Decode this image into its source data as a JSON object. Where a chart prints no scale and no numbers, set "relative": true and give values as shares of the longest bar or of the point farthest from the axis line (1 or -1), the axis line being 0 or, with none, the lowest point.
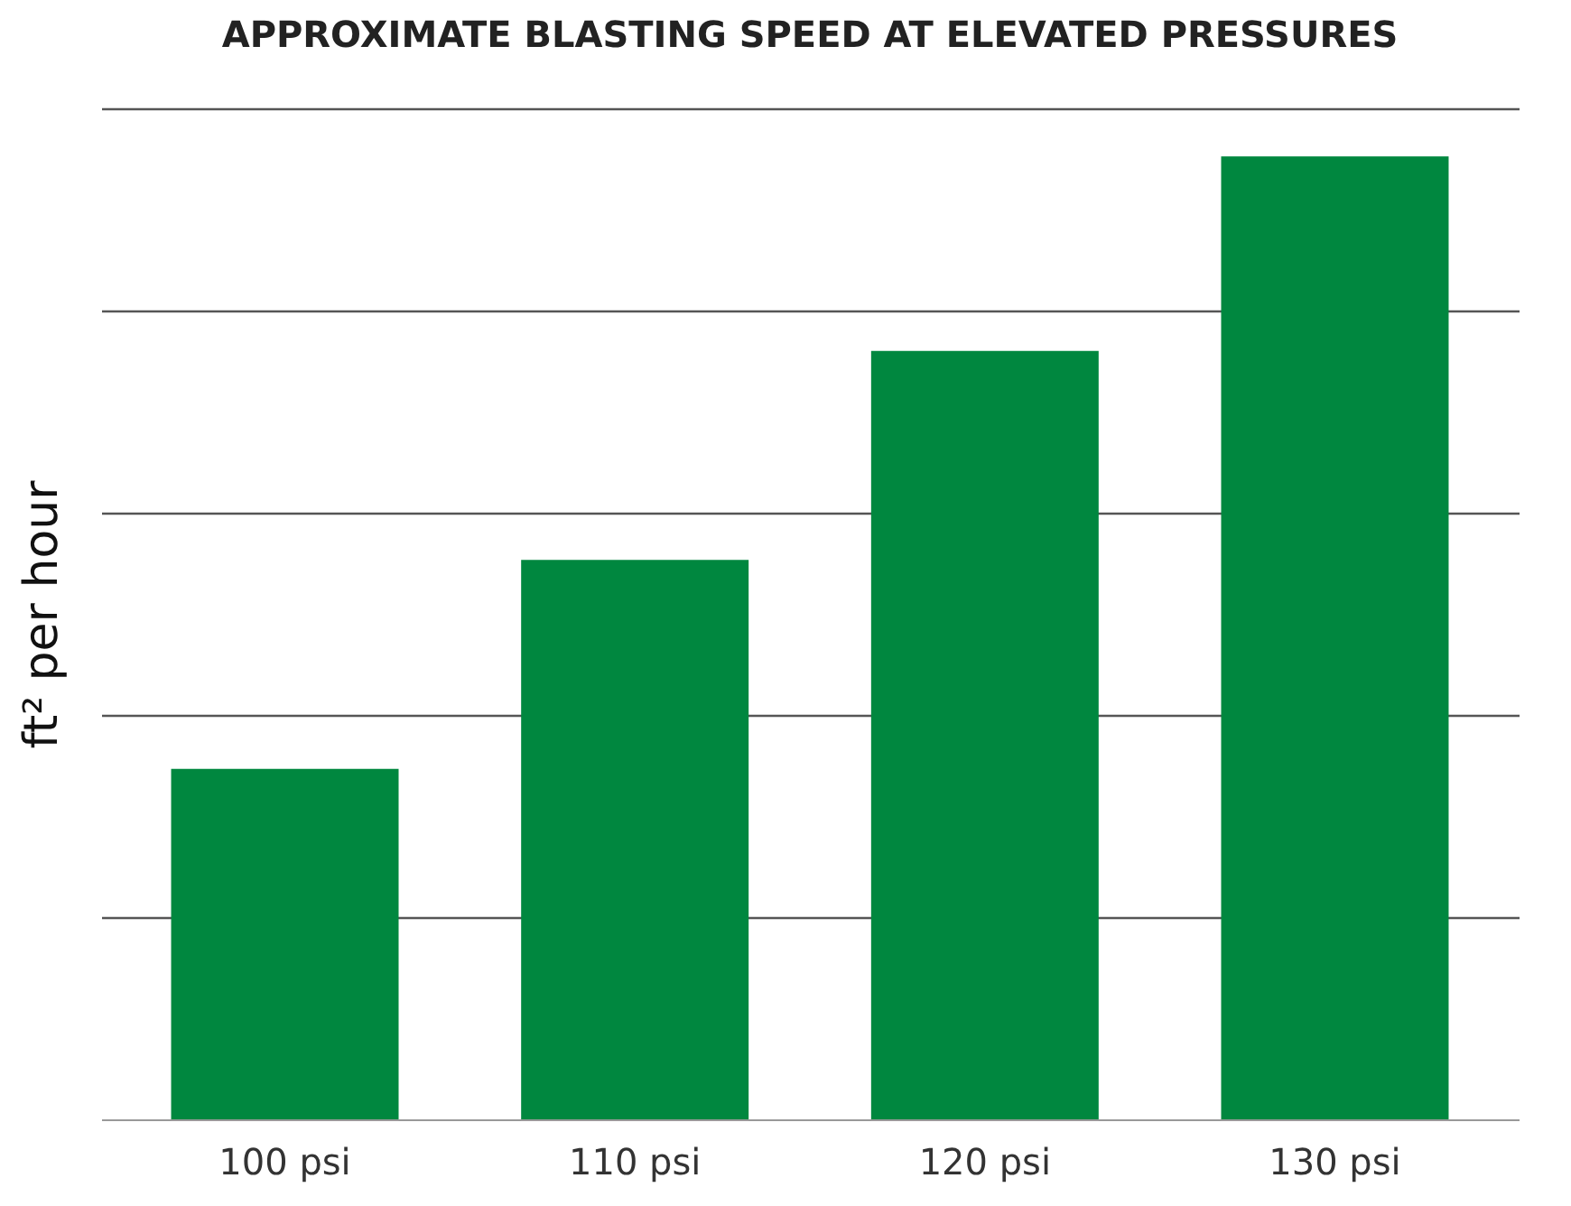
{
  "chart_data": {
    "type": "bar",
    "title": "APPROXIMATE BLASTING SPEED AT ELEVATED PRESSURES",
    "ylabel": "ft² per hour",
    "categories": [
      "100 psi",
      "110 psi",
      "120 psi",
      "130 psi"
    ],
    "values": [
      0.364,
      0.581,
      0.798,
      1
    ],
    "color": "#00873f",
    "relative": true,
    "grid": "y"
  }
}
